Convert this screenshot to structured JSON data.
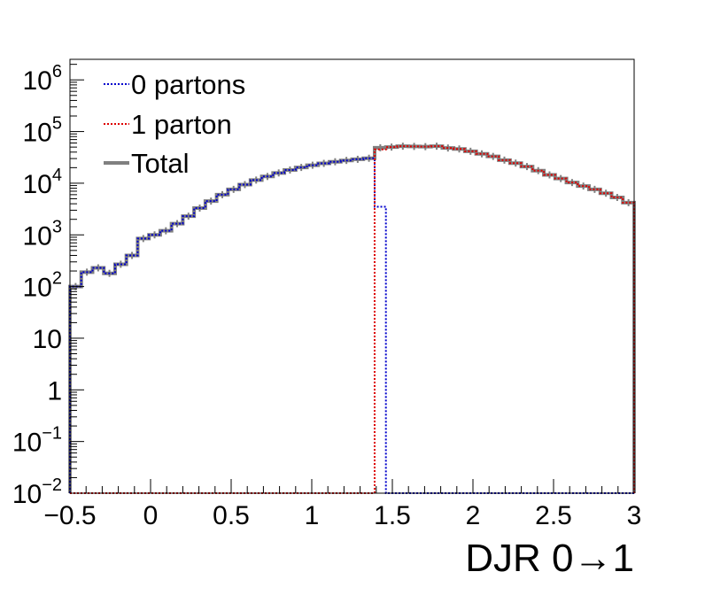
{
  "chart_data": {
    "type": "line",
    "xlabel": "DJR 0→1",
    "ylabel": "",
    "xlim": [
      -0.5,
      3.0
    ],
    "ylim": [
      0.01,
      2500000
    ],
    "y_scale": "log",
    "grid": false,
    "legend_position": "top-left",
    "x_ticks": [
      {
        "value": -0.5,
        "label": "−0.5"
      },
      {
        "value": 0,
        "label": "0"
      },
      {
        "value": 0.5,
        "label": "0.5"
      },
      {
        "value": 1,
        "label": "1"
      },
      {
        "value": 1.5,
        "label": "1.5"
      },
      {
        "value": 2,
        "label": "2"
      },
      {
        "value": 2.5,
        "label": "2.5"
      },
      {
        "value": 3,
        "label": "3"
      }
    ],
    "y_ticks": [
      {
        "value": 0.01,
        "base": "10",
        "exp": "−2"
      },
      {
        "value": 0.1,
        "base": "10",
        "exp": "−1"
      },
      {
        "value": 1,
        "base": "1",
        "exp": ""
      },
      {
        "value": 10,
        "base": "10",
        "exp": ""
      },
      {
        "value": 100,
        "base": "10",
        "exp": "2"
      },
      {
        "value": 1000,
        "base": "10",
        "exp": "3"
      },
      {
        "value": 10000,
        "base": "10",
        "exp": "4"
      },
      {
        "value": 100000,
        "base": "10",
        "exp": "5"
      },
      {
        "value": 1000000,
        "base": "10",
        "exp": "6"
      }
    ],
    "bin_edges": [
      -0.5,
      -0.43,
      -0.36,
      -0.29,
      -0.22,
      -0.15,
      -0.08,
      -0.01,
      0.06,
      0.13,
      0.2,
      0.27,
      0.34,
      0.41,
      0.48,
      0.55,
      0.62,
      0.69,
      0.76,
      0.83,
      0.9,
      0.97,
      1.04,
      1.11,
      1.18,
      1.25,
      1.32,
      1.39,
      1.46,
      1.53,
      1.6,
      1.67,
      1.74,
      1.81,
      1.88,
      1.95,
      2.02,
      2.09,
      2.16,
      2.23,
      2.3,
      2.37,
      2.44,
      2.51,
      2.58,
      2.65,
      2.72,
      2.79,
      2.86,
      2.93,
      3.0
    ],
    "series": [
      {
        "name": "0 partons",
        "color": "#0000cc",
        "dash": "dotted",
        "values": [
          100,
          190,
          230,
          180,
          270,
          400,
          850,
          1000,
          1200,
          1650,
          2300,
          3300,
          4500,
          6000,
          7600,
          9400,
          11500,
          13500,
          15800,
          18000,
          20200,
          22300,
          24200,
          26000,
          27600,
          29000,
          30400,
          3500,
          0.01,
          0.01,
          0.01,
          0.01,
          0.01,
          0.01,
          0.01,
          0.01,
          0.01,
          0.01,
          0.01,
          0.01,
          0.01,
          0.01,
          0.01,
          0.01,
          0.01,
          0.01,
          0.01,
          0.01,
          0.01,
          0.01
        ]
      },
      {
        "name": "1 parton",
        "color": "#dd0000",
        "dash": "dotted",
        "values": [
          0.01,
          0.01,
          0.01,
          0.01,
          0.01,
          0.01,
          0.01,
          0.01,
          0.01,
          0.01,
          0.01,
          0.01,
          0.01,
          0.01,
          0.01,
          0.01,
          0.01,
          0.01,
          0.01,
          0.01,
          0.01,
          0.01,
          0.01,
          0.01,
          0.01,
          0.01,
          0.01,
          45000,
          50000,
          52000,
          51500,
          51000,
          52000,
          48000,
          46000,
          41500,
          37000,
          33000,
          28000,
          24500,
          21000,
          17500,
          14500,
          12300,
          10300,
          8800,
          7600,
          6400,
          5300,
          4200
        ]
      },
      {
        "name": "Total",
        "color": "#808080",
        "dash": "solid",
        "values": [
          100,
          190,
          230,
          180,
          270,
          400,
          850,
          1000,
          1200,
          1650,
          2300,
          3300,
          4500,
          6000,
          7600,
          9400,
          11500,
          13500,
          15800,
          18000,
          20200,
          22300,
          24200,
          26000,
          27600,
          29000,
          30400,
          48500,
          50000,
          52000,
          51500,
          51000,
          52000,
          48000,
          46000,
          41500,
          37000,
          33000,
          28000,
          24500,
          21000,
          17500,
          14500,
          12300,
          10300,
          8800,
          7600,
          6400,
          5300,
          4200
        ]
      }
    ]
  }
}
